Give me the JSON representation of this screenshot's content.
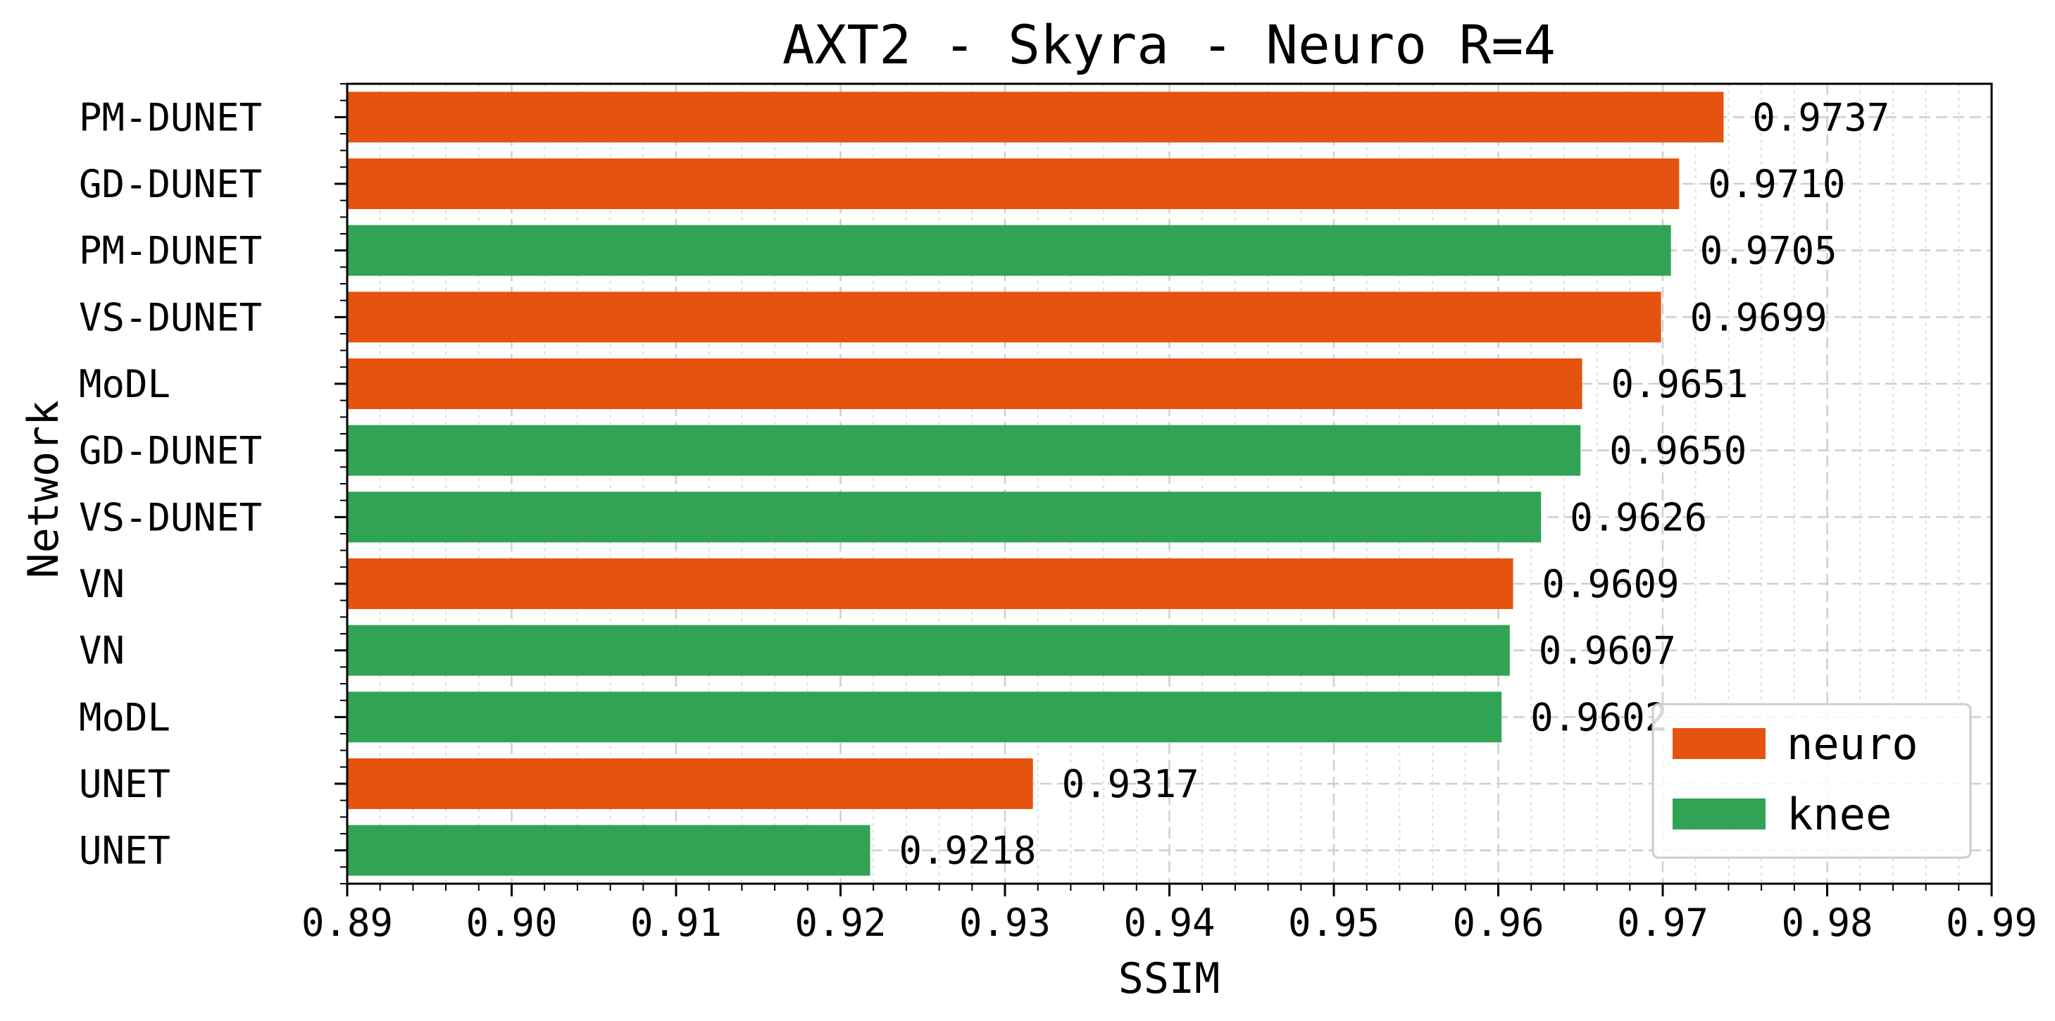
{
  "chart_data": {
    "type": "bar",
    "orientation": "horizontal",
    "title": "AXT2 - Skyra - Neuro R=4",
    "xlabel": "SSIM",
    "ylabel": "Network",
    "xlim": [
      0.89,
      0.99
    ],
    "xticks": [
      "0.89",
      "0.90",
      "0.91",
      "0.92",
      "0.93",
      "0.94",
      "0.95",
      "0.96",
      "0.97",
      "0.98",
      "0.99"
    ],
    "grid": true,
    "legend_position": "bottom-right",
    "series_colors": {
      "neuro": "#e4540f",
      "knee": "#31a354"
    },
    "legend": [
      {
        "name": "neuro",
        "color": "#e4540f"
      },
      {
        "name": "knee",
        "color": "#31a354"
      }
    ],
    "bars": [
      {
        "category": "PM-DUNET",
        "series": "neuro",
        "value": 0.9737,
        "label": "0.9737"
      },
      {
        "category": "GD-DUNET",
        "series": "neuro",
        "value": 0.971,
        "label": "0.9710"
      },
      {
        "category": "PM-DUNET",
        "series": "knee",
        "value": 0.9705,
        "label": "0.9705"
      },
      {
        "category": "VS-DUNET",
        "series": "neuro",
        "value": 0.9699,
        "label": "0.9699"
      },
      {
        "category": "MoDL",
        "series": "neuro",
        "value": 0.9651,
        "label": "0.9651"
      },
      {
        "category": "GD-DUNET",
        "series": "knee",
        "value": 0.965,
        "label": "0.9650"
      },
      {
        "category": "VS-DUNET",
        "series": "knee",
        "value": 0.9626,
        "label": "0.9626"
      },
      {
        "category": "VN",
        "series": "neuro",
        "value": 0.9609,
        "label": "0.9609"
      },
      {
        "category": "VN",
        "series": "knee",
        "value": 0.9607,
        "label": "0.9607"
      },
      {
        "category": "MoDL",
        "series": "knee",
        "value": 0.9602,
        "label": "0.9602"
      },
      {
        "category": "UNET",
        "series": "neuro",
        "value": 0.9317,
        "label": "0.9317"
      },
      {
        "category": "UNET",
        "series": "knee",
        "value": 0.9218,
        "label": "0.9218"
      }
    ]
  }
}
